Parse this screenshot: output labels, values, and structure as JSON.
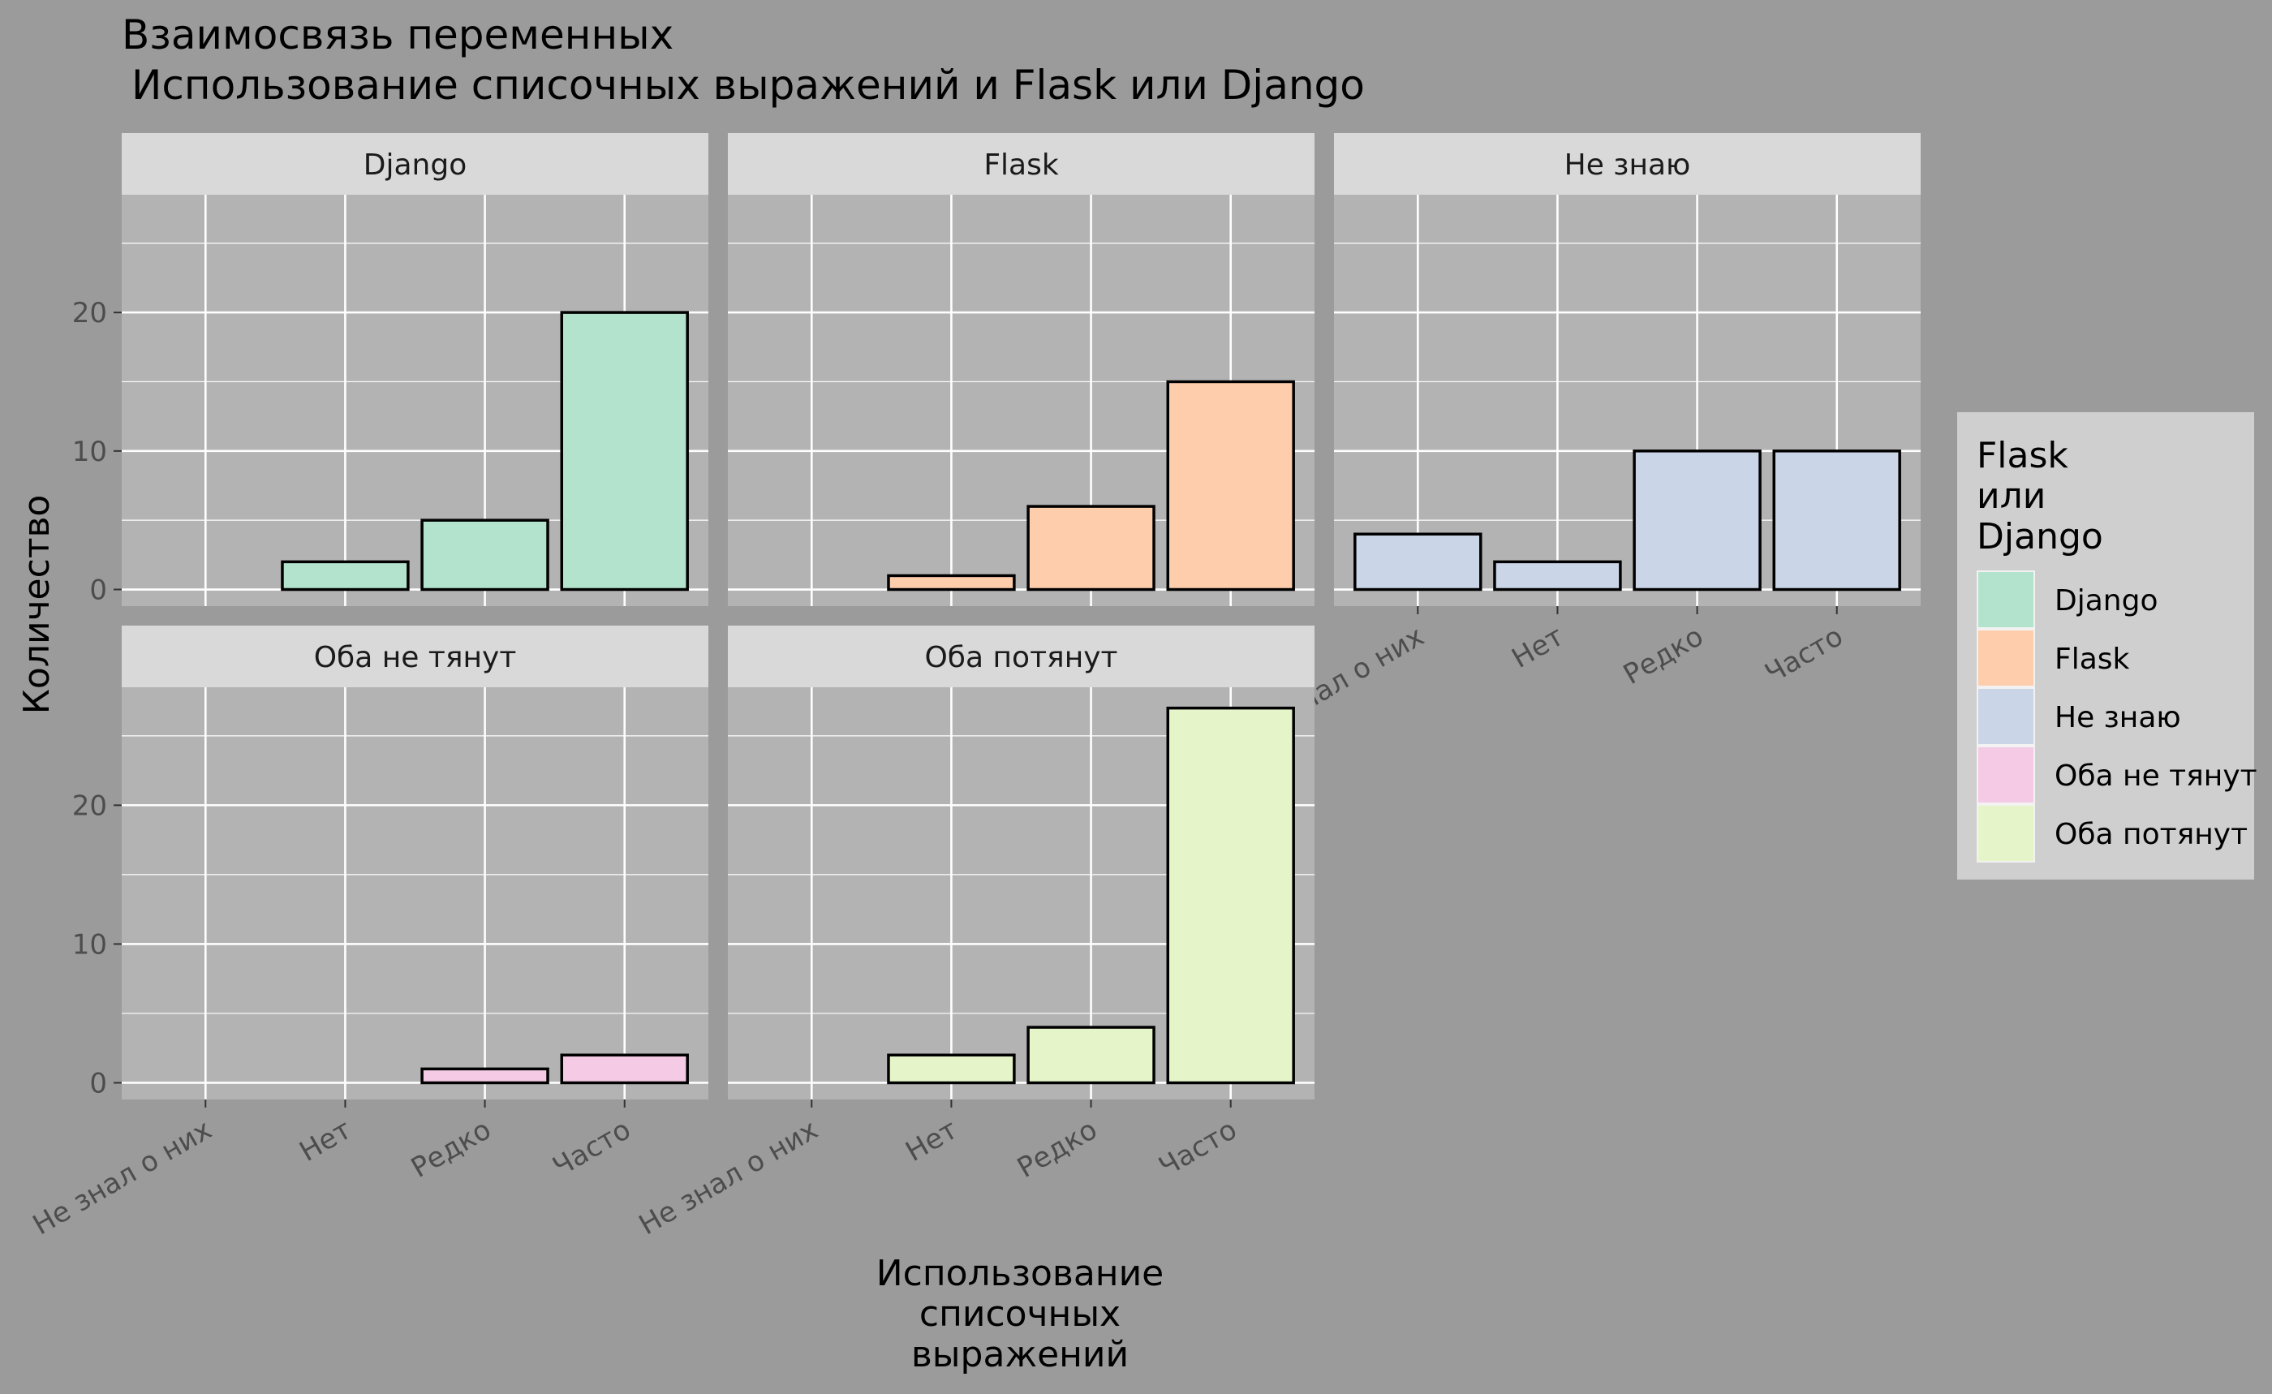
{
  "chart_data": {
    "type": "bar",
    "title_line1": "Взаимосвязь переменных",
    "title_line2": "Использование списочных выражений и Flask или Django",
    "xlabel": [
      "Использование",
      "списочных",
      "выражений"
    ],
    "ylabel": "Количество",
    "categories": [
      "Не знал о них",
      "Нет",
      "Редко",
      "Часто"
    ],
    "ylim": [
      -1.2,
      28.5
    ],
    "yticks": [
      0,
      10,
      20
    ],
    "grid": true,
    "legend": {
      "position": "right",
      "title": [
        "Flask",
        "или",
        "Django"
      ]
    },
    "facets": [
      {
        "name": "Django",
        "color": "#b3e2cd",
        "values": [
          0,
          2,
          5,
          20
        ]
      },
      {
        "name": "Flask",
        "color": "#fdcdac",
        "values": [
          0,
          1,
          6,
          15
        ]
      },
      {
        "name": "Не знаю",
        "color": "#cbd5e8",
        "values": [
          4,
          2,
          10,
          10
        ]
      },
      {
        "name": "Оба не тянут",
        "color": "#f4cae4",
        "values": [
          0,
          0,
          1,
          2
        ]
      },
      {
        "name": "Оба потянут",
        "color": "#e6f5c9",
        "values": [
          0,
          2,
          4,
          27
        ]
      }
    ]
  }
}
